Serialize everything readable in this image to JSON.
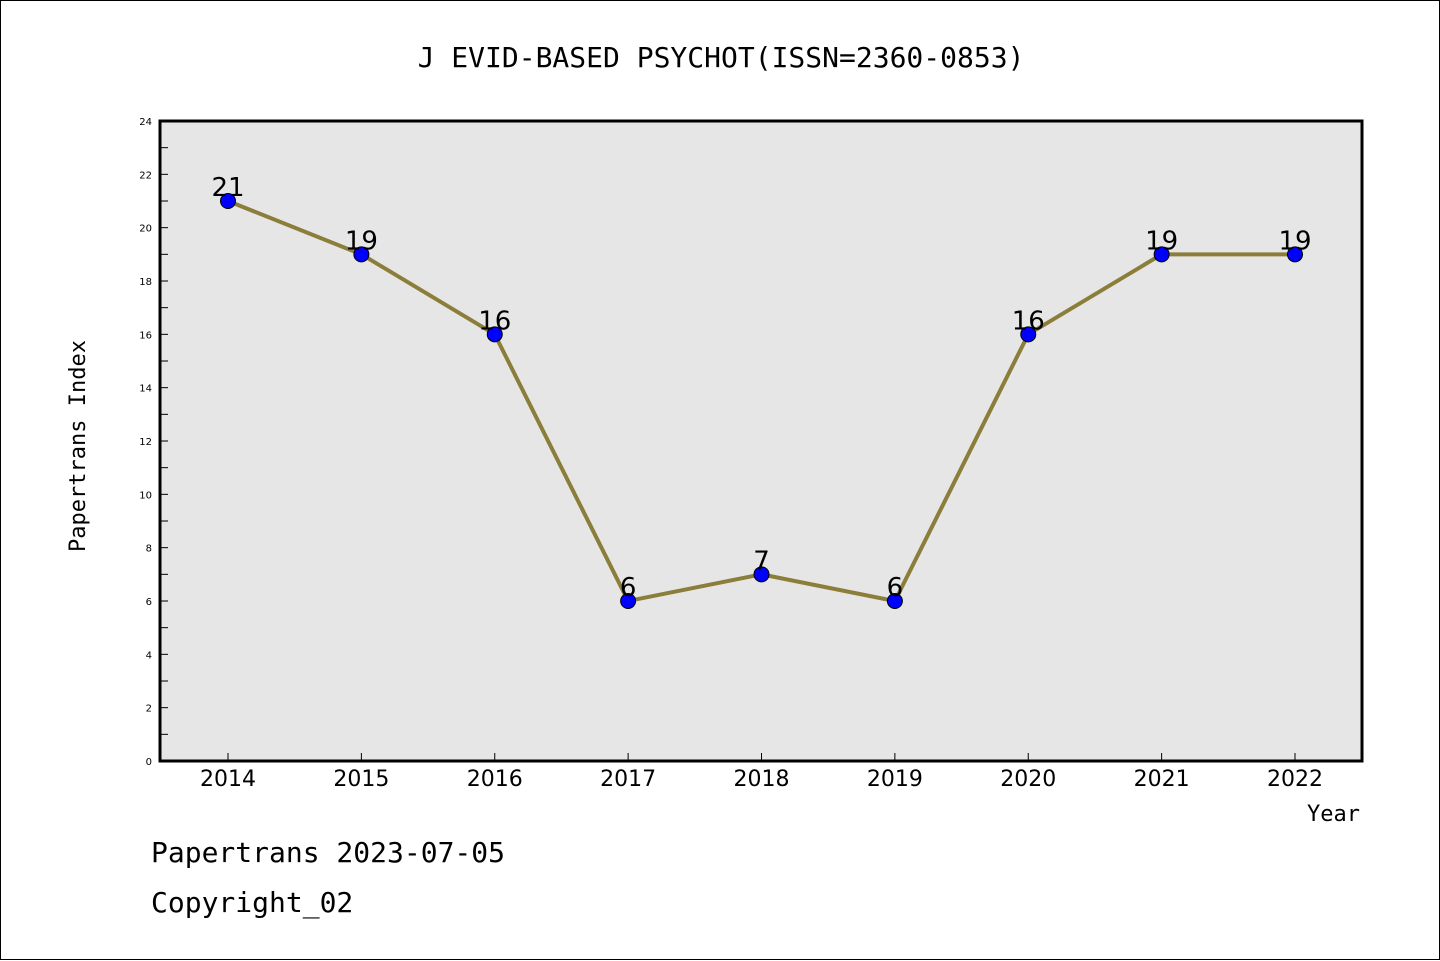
{
  "chart_data": {
    "type": "line",
    "title": "J EVID-BASED PSYCHOT(ISSN=2360-0853)",
    "xlabel": "Year",
    "ylabel": "Papertrans Index",
    "x": [
      "2014",
      "2015",
      "2016",
      "2017",
      "2018",
      "2019",
      "2020",
      "2021",
      "2022"
    ],
    "values": [
      21,
      19,
      16,
      6,
      7,
      6,
      16,
      19,
      19
    ],
    "ylim": [
      0,
      24
    ],
    "yticks": [
      "0",
      "2",
      "4",
      "6",
      "8",
      "10",
      "12",
      "14",
      "16",
      "18",
      "20",
      "22",
      "24"
    ],
    "grid": false,
    "data_labels": true,
    "colors": {
      "line": "#8b7d3a",
      "marker": "#0000ff",
      "plot_background": "#e6e6e6"
    }
  },
  "footer": {
    "line1": "Papertrans 2023-07-05",
    "line2": "Copyright_02"
  }
}
